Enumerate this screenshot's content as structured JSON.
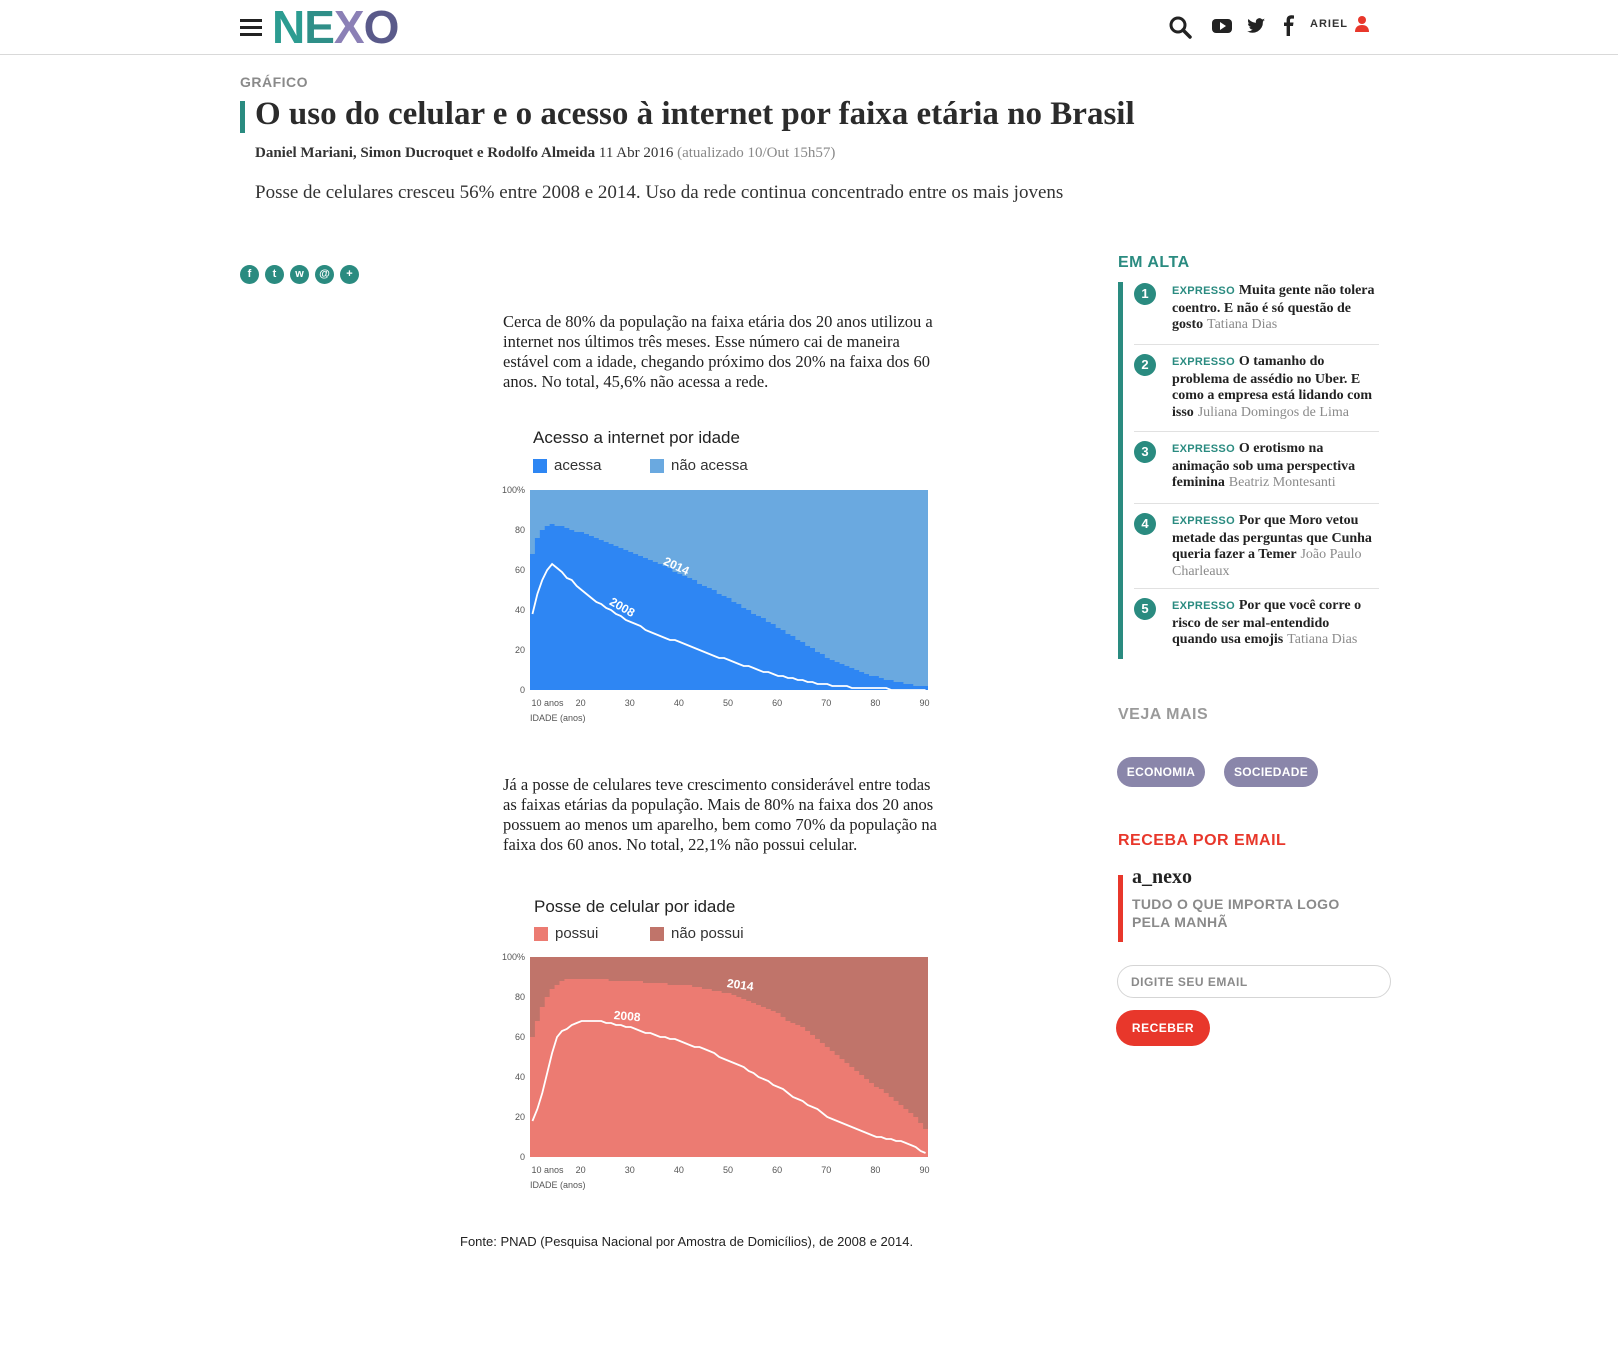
{
  "header": {
    "logo": {
      "n": "N",
      "e": "E",
      "x": "X",
      "o": "O"
    },
    "user_label": "ARIEL",
    "icons": [
      "menu-icon",
      "search-icon",
      "youtube-icon",
      "twitter-icon",
      "facebook-icon",
      "user-icon"
    ]
  },
  "article": {
    "kicker": "GRÁFICO",
    "title": "O uso do celular e o acesso à internet por faixa etária no Brasil",
    "authors": "Daniel Mariani, Simon Ducroquet e Rodolfo Almeida",
    "date": "11 Abr 2016",
    "updated": "(atualizado 10/Out 15h57)",
    "dek": "Posse de celulares cresceu 56% entre 2008 e 2014. Uso da rede continua concentrado entre os mais jovens",
    "share_icons": [
      "facebook-share-icon",
      "twitter-share-icon",
      "whatsapp-share-icon",
      "email-share-icon",
      "plus-share-icon"
    ],
    "para1": "Cerca de 80% da população na faixa etária dos 20 anos utilizou a internet nos últimos três meses. Esse número cai de maneira estável com a idade, chegando próximo dos 20% na faixa dos 60 anos. No total, 45,6% não acessa a rede.",
    "para2": "Já a posse de celulares teve crescimento considerável entre todas as faixas etárias da população. Mais de 80% na faixa dos 20 anos possuem ao menos um aparelho, bem como 70% da população na faixa dos 60 anos. No total, 22,1% não possui celular.",
    "source": "Fonte: PNAD (Pesquisa Nacional por Amostra de Domicílios), de 2008 e 2014."
  },
  "chart_data": [
    {
      "type": "area",
      "title": "Acesso a internet por idade",
      "legend": [
        "acessa",
        "não acessa"
      ],
      "colors": {
        "acessa": "#2e86f3",
        "nao_acessa": "#6aa9e0",
        "line": "#ffffff"
      },
      "xlabel": "IDADE (anos)",
      "xlim": [
        10,
        91
      ],
      "ylim": [
        0,
        100
      ],
      "x_ticks": [
        10,
        20,
        30,
        40,
        50,
        60,
        70,
        80,
        90
      ],
      "x_tick_labels": [
        "10 anos",
        "20",
        "30",
        "40",
        "50",
        "60",
        "70",
        "80",
        "90"
      ],
      "y_ticks": [
        0,
        20,
        40,
        60,
        80,
        100
      ],
      "y_tick_labels": [
        "0",
        "20",
        "40",
        "60",
        "80",
        "100%"
      ],
      "series": [
        {
          "name": "2014",
          "x": [
            10,
            11,
            12,
            13,
            14,
            15,
            16,
            17,
            18,
            19,
            20,
            21,
            22,
            23,
            24,
            25,
            26,
            27,
            28,
            29,
            30,
            31,
            32,
            33,
            34,
            35,
            36,
            37,
            38,
            39,
            40,
            41,
            42,
            43,
            44,
            45,
            46,
            47,
            48,
            49,
            50,
            51,
            52,
            53,
            54,
            55,
            56,
            57,
            58,
            59,
            60,
            61,
            62,
            63,
            64,
            65,
            66,
            67,
            68,
            69,
            70,
            71,
            72,
            73,
            74,
            75,
            76,
            77,
            78,
            79,
            80,
            81,
            82,
            83,
            84,
            85,
            86,
            87,
            88,
            89,
            90
          ],
          "values": [
            68,
            76,
            80,
            82,
            83,
            82,
            82,
            81,
            80,
            79,
            79,
            78,
            77,
            76,
            75,
            74,
            73,
            72,
            71,
            70,
            69,
            68,
            67,
            66,
            65,
            64,
            63,
            62,
            61,
            59,
            58,
            57,
            56,
            55,
            53,
            52,
            51,
            50,
            48,
            47,
            46,
            44,
            43,
            41,
            40,
            38,
            37,
            36,
            34,
            33,
            31,
            30,
            28,
            27,
            25,
            24,
            22,
            21,
            19,
            18,
            16,
            15,
            14,
            13,
            12,
            11,
            10,
            9,
            8,
            7,
            7,
            6,
            5,
            5,
            4,
            4,
            3,
            3,
            2,
            2,
            2
          ]
        },
        {
          "name": "2008",
          "x": [
            10,
            11,
            12,
            13,
            14,
            15,
            16,
            17,
            18,
            19,
            20,
            21,
            22,
            23,
            24,
            25,
            26,
            27,
            28,
            29,
            30,
            31,
            32,
            33,
            34,
            35,
            36,
            37,
            38,
            39,
            40,
            41,
            42,
            43,
            44,
            45,
            46,
            47,
            48,
            49,
            50,
            51,
            52,
            53,
            54,
            55,
            56,
            57,
            58,
            59,
            60,
            61,
            62,
            63,
            64,
            65,
            66,
            67,
            68,
            69,
            70,
            71,
            72,
            73,
            74,
            75,
            76,
            77,
            78,
            79,
            80,
            81,
            82,
            83,
            84,
            85,
            86,
            87,
            88,
            89,
            90
          ],
          "values": [
            38,
            48,
            55,
            60,
            63,
            61,
            59,
            56,
            55,
            52,
            50,
            48,
            46,
            44,
            43,
            41,
            40,
            38,
            37,
            35,
            34,
            33,
            32,
            30,
            29,
            28,
            27,
            26,
            25,
            25,
            24,
            23,
            22,
            21,
            20,
            19,
            18,
            17,
            16,
            16,
            15,
            14,
            13,
            12,
            12,
            11,
            10,
            9,
            9,
            8,
            7,
            7,
            6,
            6,
            5,
            5,
            4,
            4,
            3,
            3,
            3,
            2,
            2,
            2,
            2,
            1,
            1,
            1,
            1,
            1,
            1,
            1,
            1,
            0,
            0,
            0,
            0,
            0,
            0,
            0,
            0
          ]
        }
      ]
    },
    {
      "type": "area",
      "title": "Posse de celular por idade",
      "legend": [
        "possui",
        "não possui"
      ],
      "colors": {
        "possui": "#ec7b72",
        "nao_possui": "#c0746a",
        "line": "#ffffff"
      },
      "xlabel": "IDADE (anos)",
      "xlim": [
        10,
        91
      ],
      "ylim": [
        0,
        100
      ],
      "x_ticks": [
        10,
        20,
        30,
        40,
        50,
        60,
        70,
        80,
        90
      ],
      "x_tick_labels": [
        "10 anos",
        "20",
        "30",
        "40",
        "50",
        "60",
        "70",
        "80",
        "90"
      ],
      "y_ticks": [
        0,
        20,
        40,
        60,
        80,
        100
      ],
      "y_tick_labels": [
        "0",
        "20",
        "40",
        "60",
        "80",
        "100%"
      ],
      "series": [
        {
          "name": "2014",
          "x": [
            10,
            11,
            12,
            13,
            14,
            15,
            16,
            17,
            18,
            19,
            20,
            21,
            22,
            23,
            24,
            25,
            26,
            27,
            28,
            29,
            30,
            31,
            32,
            33,
            34,
            35,
            36,
            37,
            38,
            39,
            40,
            41,
            42,
            43,
            44,
            45,
            46,
            47,
            48,
            49,
            50,
            51,
            52,
            53,
            54,
            55,
            56,
            57,
            58,
            59,
            60,
            61,
            62,
            63,
            64,
            65,
            66,
            67,
            68,
            69,
            70,
            71,
            72,
            73,
            74,
            75,
            76,
            77,
            78,
            79,
            80,
            81,
            82,
            83,
            84,
            85,
            86,
            87,
            88,
            89,
            90
          ],
          "values": [
            60,
            68,
            75,
            80,
            84,
            86,
            88,
            89,
            89,
            89,
            89,
            89,
            89,
            89,
            89,
            89,
            88,
            88,
            88,
            88,
            88,
            88,
            88,
            87,
            87,
            87,
            87,
            87,
            86,
            86,
            86,
            86,
            86,
            85,
            85,
            84,
            84,
            83,
            83,
            82,
            82,
            81,
            80,
            79,
            78,
            77,
            76,
            75,
            74,
            73,
            72,
            70,
            68,
            67,
            66,
            65,
            63,
            61,
            59,
            57,
            55,
            53,
            51,
            49,
            47,
            45,
            43,
            41,
            39,
            37,
            35,
            34,
            32,
            30,
            28,
            26,
            24,
            22,
            20,
            17,
            14
          ]
        },
        {
          "name": "2008",
          "x": [
            10,
            11,
            12,
            13,
            14,
            15,
            16,
            17,
            18,
            19,
            20,
            21,
            22,
            23,
            24,
            25,
            26,
            27,
            28,
            29,
            30,
            31,
            32,
            33,
            34,
            35,
            36,
            37,
            38,
            39,
            40,
            41,
            42,
            43,
            44,
            45,
            46,
            47,
            48,
            49,
            50,
            51,
            52,
            53,
            54,
            55,
            56,
            57,
            58,
            59,
            60,
            61,
            62,
            63,
            64,
            65,
            66,
            67,
            68,
            69,
            70,
            71,
            72,
            73,
            74,
            75,
            76,
            77,
            78,
            79,
            80,
            81,
            82,
            83,
            84,
            85,
            86,
            87,
            88,
            89,
            90
          ],
          "values": [
            18,
            24,
            32,
            42,
            52,
            60,
            63,
            64,
            66,
            67,
            68,
            68,
            68,
            68,
            68,
            67,
            67,
            66,
            66,
            65,
            65,
            64,
            63,
            62,
            62,
            61,
            60,
            60,
            59,
            59,
            58,
            57,
            56,
            55,
            55,
            54,
            53,
            52,
            50,
            49,
            48,
            47,
            46,
            45,
            43,
            42,
            40,
            39,
            38,
            36,
            35,
            34,
            32,
            30,
            29,
            28,
            26,
            25,
            24,
            22,
            20,
            19,
            18,
            17,
            16,
            15,
            14,
            13,
            12,
            11,
            10,
            10,
            9,
            9,
            8,
            8,
            7,
            6,
            5,
            3,
            2
          ]
        }
      ]
    }
  ],
  "sidebar": {
    "trending_title": "EM ALTA",
    "trending": [
      {
        "num": "1",
        "section": "EXPRESSO",
        "headline": "Muita gente não tolera coentro. E não é só questão de gosto",
        "author": "Tatiana Dias"
      },
      {
        "num": "2",
        "section": "EXPRESSO",
        "headline": "O tamanho do problema de assédio no Uber. E como a empresa está lidando com isso",
        "author": "Juliana Domingos de Lima"
      },
      {
        "num": "3",
        "section": "EXPRESSO",
        "headline": "O erotismo na animação sob uma perspectiva feminina",
        "author": "Beatriz Montesanti"
      },
      {
        "num": "4",
        "section": "EXPRESSO",
        "headline": "Por que Moro vetou metade das perguntas que Cunha queria fazer a Temer",
        "author": "João Paulo Charleaux"
      },
      {
        "num": "5",
        "section": "EXPRESSO",
        "headline": "Por que você corre o risco de ser mal-entendido quando usa emojis",
        "author": "Tatiana Dias"
      }
    ],
    "see_more_title": "VEJA MAIS",
    "tags": [
      "ECONOMIA",
      "SOCIEDADE"
    ],
    "newsletter_title": "RECEBA POR EMAIL",
    "newsletter_name": "a_nexo",
    "newsletter_desc": "TUDO O QUE IMPORTA LOGO PELA MANHÃ",
    "email_placeholder": "DIGITE SEU EMAIL",
    "submit_label": "RECEBER",
    "colors": {
      "teal": "#2a8b80",
      "red": "#e8372b",
      "purple": "#8a86aa"
    }
  }
}
